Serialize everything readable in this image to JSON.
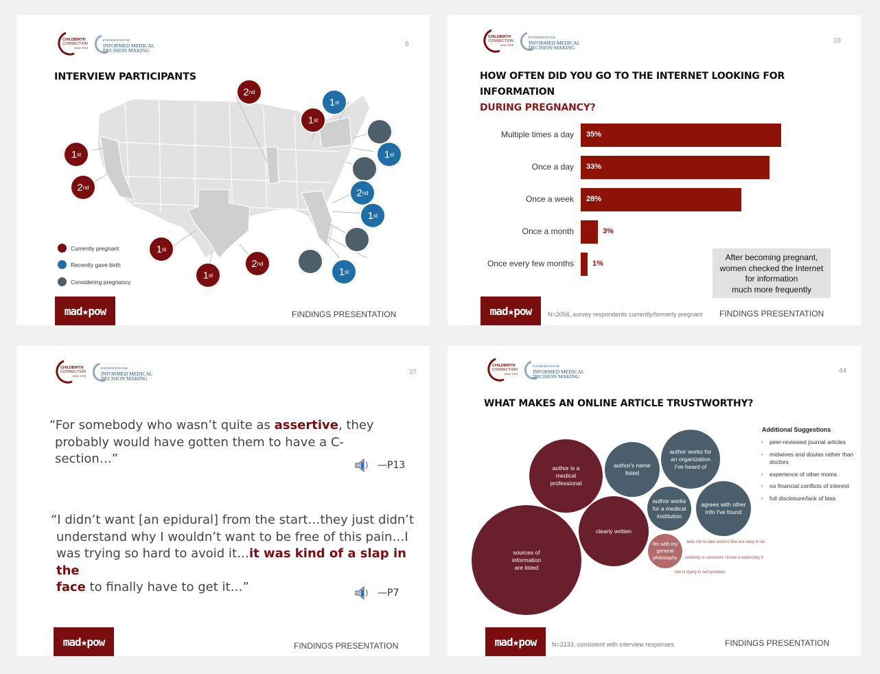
{
  "logo": {
    "brand_top": "CHILDBIRTH",
    "brand_bottom": "CONNECTION",
    "brand_since": "since 1918",
    "foundation_line1": "FOUNDATION FOR",
    "foundation_line2": "INFORMED MEDICAL",
    "foundation_line3": "DECISION MAKING"
  },
  "footer": {
    "madpow": "mad★pow",
    "findings": "FINDINGS PRESENTATION"
  },
  "slide1": {
    "page": "6",
    "title": "INTERVIEW PARTICIPANTS",
    "legend": [
      {
        "label": "Currently pregnant",
        "color": "#7a0d0d"
      },
      {
        "label": "Recently gave birth",
        "color": "#1f6fa6"
      },
      {
        "label": "Considering pregnancy",
        "color": "#4d5f6a"
      }
    ],
    "badges": [
      {
        "num": "2",
        "sup": "nd"
      },
      {
        "num": "1",
        "sup": "st"
      },
      {
        "num": "1",
        "sup": "st"
      },
      {
        "num": "2",
        "sup": "nd"
      },
      {
        "num": "1",
        "sup": "st"
      },
      {
        "num": "1",
        "sup": "st"
      },
      {
        "num": "1",
        "sup": "st"
      },
      {
        "num": "2",
        "sup": "nd"
      },
      {
        "num": "1",
        "sup": "st"
      },
      {
        "num": "2",
        "sup": "nd"
      },
      {
        "num": "1",
        "sup": "st"
      },
      {
        "num": "1",
        "sup": "st"
      }
    ]
  },
  "slide2": {
    "page": "18",
    "title_line1": "HOW OFTEN DID YOU GO TO THE INTERNET LOOKING FOR INFORMATION",
    "title_line2": "DURING PREGNANCY?",
    "callout": [
      "After becoming pregnant,",
      "women checked the Internet",
      "for information",
      "much more frequently"
    ],
    "footnote": "N=2056, survey respondents currently/formerly pregnant"
  },
  "chart_data": {
    "type": "bar",
    "orientation": "horizontal",
    "title": "HOW OFTEN DID YOU GO TO THE INTERNET LOOKING FOR INFORMATION DURING PREGNANCY?",
    "categories": [
      "Multiple times a day",
      "Once a day",
      "Once a week",
      "Once a month",
      "Once every few months"
    ],
    "values": [
      35,
      33,
      28,
      3,
      1
    ],
    "value_labels": [
      "35%",
      "33%",
      "28%",
      "3%",
      "1%"
    ],
    "xlabel": "",
    "ylabel": "",
    "xlim": [
      0,
      40
    ],
    "color": "#8e1206"
  },
  "slide3": {
    "page": "37",
    "quote1_a": "“For somebody who wasn’t quite as ",
    "quote1_hl": "assertive",
    "quote1_b": ", they",
    "quote1_line2": "probably would have gotten them to have a C-section…”",
    "attrib1": "—P13",
    "quote2_line1": "“I didn’t want [an epidural] from the start…they just didn’t",
    "quote2_line2": "understand why I wouldn’t want to be free of this pain…I",
    "quote2_line3a": "was trying so hard to avoid it…",
    "quote2_line3hl": "it was kind of a slap in the",
    "quote2_line4hl": "face",
    "quote2_line4b": " to finally have to get it…”",
    "attrib2": "—P7"
  },
  "slide4": {
    "page": "44",
    "title": "WHAT MAKES AN ONLINE ARTICLE TRUSTWORTHY?",
    "bubbles": {
      "professional": "author is a medical professional",
      "name": "author's name listed",
      "org": "author works for an organization I've heard of",
      "institution": "author works for a medical institution",
      "agrees": "agrees with other info I've found",
      "clearly": "clearly written",
      "sources": "sources of information are listed",
      "philosophy": "fits with my general philosophy"
    },
    "notes": [
      "asks me to take actions that are easy to do",
      "celebrity or someone I know is endorsing it",
      "site is trying to sell products"
    ],
    "suggestions_title": "Additional Suggestions",
    "suggestions": [
      "peer-reviewed journal articles",
      "midwives and doulas rather than doctors",
      "experience of other moms",
      "no financial conflicts of interest",
      "full disclosure/lack of bias"
    ],
    "footnote": "N=2133, consistent with interview responses"
  }
}
